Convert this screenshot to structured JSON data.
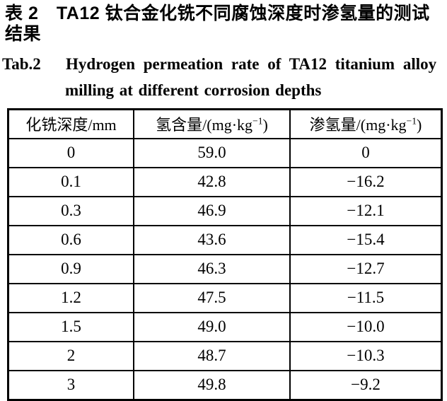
{
  "titles": {
    "chinese": "表 2　TA12 钛合金化铣不同腐蚀深度时渗氢量的测试结果",
    "english_line1": "Tab.2   Hydrogen permeation rate of TA12 titanium alloy",
    "english_line2": "milling at different corrosion depths"
  },
  "table": {
    "header": {
      "col1": "化铣深度/mm",
      "col2_main": "氢含量/(mg·kg",
      "col2_sup": "−1",
      "col2_close": ")",
      "col3_main": "渗氢量/(mg·kg",
      "col3_sup": "−1",
      "col3_close": ")"
    },
    "rows": [
      [
        "0",
        "59.0",
        "0"
      ],
      [
        "0.1",
        "42.8",
        "−16.2"
      ],
      [
        "0.3",
        "46.9",
        "−12.1"
      ],
      [
        "0.6",
        "43.6",
        "−15.4"
      ],
      [
        "0.9",
        "46.3",
        "−12.7"
      ],
      [
        "1.2",
        "47.5",
        "−11.5"
      ],
      [
        "1.5",
        "49.0",
        "−10.0"
      ],
      [
        "2",
        "48.7",
        "−10.3"
      ],
      [
        "3",
        "49.8",
        "−9.2"
      ]
    ]
  },
  "colors": {
    "text": "#000000",
    "background": "#ffffff",
    "border": "#000000"
  },
  "chart_data": {
    "type": "table",
    "title": "Tab.2 Hydrogen permeation rate of TA12 titanium alloy milling at different corrosion depths",
    "columns": [
      "化铣深度/mm",
      "氢含量/(mg·kg−1)",
      "渗氢量/(mg·kg−1)"
    ],
    "milling_depth_mm": [
      0,
      0.1,
      0.3,
      0.6,
      0.9,
      1.2,
      1.5,
      2,
      3
    ],
    "hydrogen_content_mg_per_kg": [
      59.0,
      42.8,
      46.9,
      43.6,
      46.3,
      47.5,
      49.0,
      48.7,
      49.8
    ],
    "hydrogen_permeation_mg_per_kg": [
      0,
      -16.2,
      -12.1,
      -15.4,
      -12.7,
      -11.5,
      -10.0,
      -10.3,
      -9.2
    ]
  }
}
